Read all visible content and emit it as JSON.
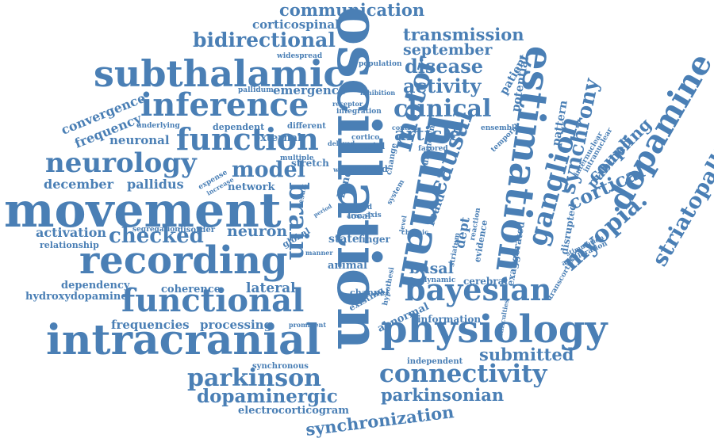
{
  "colors": {
    "word": "#4a7fb5",
    "background": "#ffffff"
  },
  "words": {
    "communication": "communication",
    "corticospinal": "corticospinal",
    "bidirectional": "bidirectional",
    "transmission": "transmission",
    "september": "september",
    "subthalamic": "subthalamic",
    "inference": "inference",
    "function": "function",
    "neurology": "neurology",
    "movement": "movement",
    "recording": "recording",
    "functional": "functional",
    "intracranial": "intracranial",
    "oscillation": "oscillation",
    "human": "human",
    "estimation": "estimation",
    "physiology": "physiology",
    "bayesian": "bayesian",
    "connectivity": "connectivity",
    "parkinson": "parkinson",
    "dopaminergic": "dopaminergic",
    "parkinsonian": "parkinsonian",
    "synchronization": "synchronization",
    "dopamine": "dopamine",
    "striatopallidal": "striatopallidal",
    "myopia": "myopia.",
    "ganglion": "ganglion",
    "cortical": "cortical",
    "synchrony": "synchrony",
    "coupling": "coupling",
    "pubmed": "pubmed",
    "disease": "disease",
    "activity": "activity",
    "clinical": "clinical",
    "article": "article",
    "causal": "causal",
    "motor": "motor",
    "brain": "brain",
    "model": "model",
    "neuron": "neuron",
    "checked": "checked",
    "december": "december",
    "pallidus": "pallidus",
    "activation": "activation",
    "relationship": "relationship",
    "dependency": "dependency",
    "hydroxydopamine": "hydroxydopamine",
    "coherence": "coherence",
    "lateral": "lateral",
    "frequencies": "frequencies",
    "processing": "processing",
    "basal": "basal",
    "submitted": "submitted",
    "convergence": "convergence",
    "frequency": "frequency",
    "neuronal": "neuronal",
    "emergence": "emergence",
    "network": "network",
    "state": "state",
    "animal": "animal",
    "information": "information",
    "electrocorticogram": "electrocorticogram",
    "potential": "potential",
    "patient": "patient",
    "pattern": "pattern",
    "dept": "dept",
    "foaid": "foaid",
    "widespread": "widespread",
    "population": "population",
    "pallidum": "pallidum",
    "underlying": "underlying",
    "dependent": "dependent",
    "different": "different",
    "integration": "integration",
    "inhibition": "inhibition",
    "receptor": "receptor",
    "external": "external",
    "multiple": "multiple",
    "stretch": "stretch",
    "related": "related",
    "whole": "whole",
    "delayed": "delayed",
    "cortico": "cortico",
    "mesial": "mesial",
    "control": "control",
    "favored": "favored",
    "ensemble": "ensemble",
    "temporal": "temporal",
    "unknown": "unknown",
    "expense": "expense",
    "increase": "increase",
    "segregation": "segregation",
    "disorder": "disorder",
    "global": "global",
    "finger": "finger",
    "band": "band",
    "area": "area",
    "local": "local",
    "axis": "axis",
    "field": "field",
    "reaction": "reaction",
    "evidence": "evidence",
    "striatum": "striatum",
    "exaggerated": "exaggerated",
    "disrupted": "disrupted",
    "acceleration": "acceleration",
    "transcortical": "transcortical",
    "stimulation": "stimulation",
    "internuclear": "internuclear",
    "intranuclear": "intranuclear",
    "chronic": "chronic",
    "dynamic": "dynamic",
    "cerebral": "cerebral",
    "channel": "channel",
    "existing": "existing",
    "hypothesi": "hypothesi",
    "abnormal": "abnormal",
    "independent": "independent",
    "synchronous": "synchronous",
    "prominent": "prominent",
    "difficulties": "difficulties",
    "change": "change",
    "system": "system",
    "level": "level",
    "result": "result",
    "period": "period",
    "manner": "manner"
  }
}
